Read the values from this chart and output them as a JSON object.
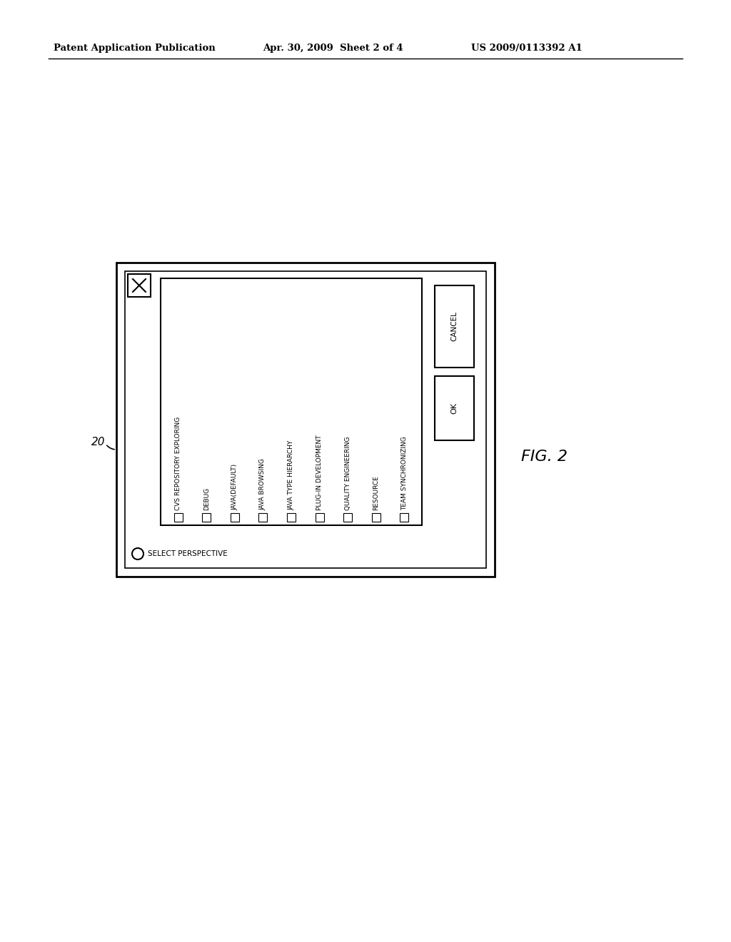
{
  "bg_color": "#ffffff",
  "header_left": "Patent Application Publication",
  "header_mid": "Apr. 30, 2009  Sheet 2 of 4",
  "header_right": "US 2009/0113392 A1",
  "figure_label": "FIG. 2",
  "ref_label": "20",
  "dialog": {
    "title_text": "SELECT PERSPECTIVE",
    "list_items": [
      "CVS REPOSITORY EXPLORING",
      "DEBUG",
      "JAVA(DEFAULT)",
      "JAVA BROWSING",
      "JAVA TYPE HIERARCHY",
      "PLUG-IN DEVELOPMENT",
      "QUALITY ENGINEERING",
      "RESOURCE",
      "TEAM SYNCHRONIZING"
    ],
    "ok_label": "OK",
    "cancel_label": "CANCEL"
  }
}
